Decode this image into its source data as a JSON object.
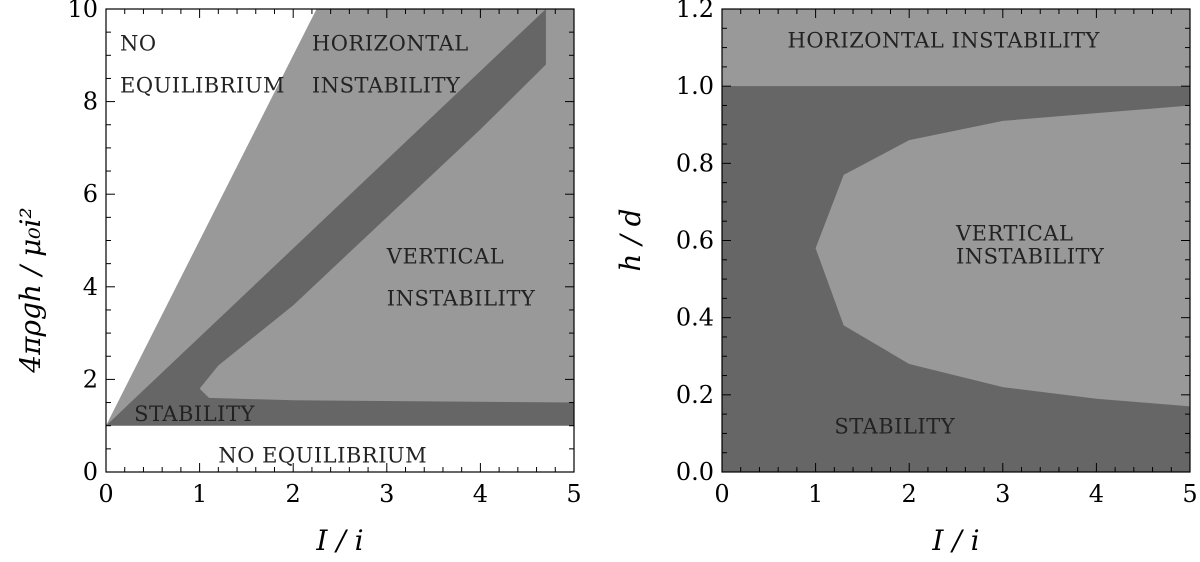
{
  "chart_data": [
    {
      "type": "area",
      "title": "",
      "xlabel": "I / i",
      "ylabel": "4πρgh / μ₀i²",
      "xlim": [
        0,
        5
      ],
      "ylim": [
        0,
        10
      ],
      "xticks": [
        "0",
        "1",
        "2",
        "3",
        "4",
        "5"
      ],
      "yticks": [
        "0",
        "2",
        "4",
        "6",
        "8",
        "10"
      ],
      "grid": false,
      "colors": {
        "no_equilibrium": "#ffffff",
        "stability": "#666666",
        "instability": "#999999"
      },
      "regions": [
        {
          "name": "no_equilibrium_upper",
          "boundary_y_eq_1_plus_4x": true
        },
        {
          "name": "no_equilibrium_lower",
          "y_max": 1
        }
      ],
      "boundaries": {
        "equilibrium_upper": [
          [
            0,
            1
          ],
          [
            2.25,
            10
          ]
        ],
        "horizontal_lower": [
          [
            0,
            1
          ],
          [
            4.7,
            10
          ]
        ],
        "horizontal_upper": [
          [
            0,
            1
          ],
          [
            5,
            10.2
          ]
        ],
        "vertical_instability": [
          [
            1.0,
            1.8
          ],
          [
            1.2,
            2.3
          ],
          [
            2.0,
            3.6
          ],
          [
            3.0,
            5.5
          ],
          [
            4.0,
            7.4
          ],
          [
            4.7,
            8.8
          ],
          [
            5,
            8.8
          ],
          [
            5,
            1.5
          ],
          [
            2.0,
            1.55
          ],
          [
            1.1,
            1.6
          ],
          [
            1.0,
            1.8
          ]
        ],
        "stability_bottom": [
          [
            0,
            1
          ],
          [
            5,
            1
          ]
        ]
      },
      "annotations": [
        {
          "text": "NO",
          "x": 0.15,
          "y": 9.1
        },
        {
          "text": "EQUILIBRIUM",
          "x": 0.15,
          "y": 8.2
        },
        {
          "text": "HORIZONTAL",
          "x": 2.2,
          "y": 9.1
        },
        {
          "text": "INSTABILITY",
          "x": 2.2,
          "y": 8.2
        },
        {
          "text": "VERTICAL",
          "x": 3.0,
          "y": 4.5
        },
        {
          "text": "INSTABILITY",
          "x": 3.0,
          "y": 3.6
        },
        {
          "text": "STABILITY",
          "x": 0.3,
          "y": 1.1
        },
        {
          "text": "NO EQUILIBRIUM",
          "x": 1.2,
          "y": 0.2
        }
      ]
    },
    {
      "type": "area",
      "title": "",
      "xlabel": "I / i",
      "ylabel": "h / d",
      "xlim": [
        0,
        5
      ],
      "ylim": [
        0,
        1.2
      ],
      "xticks": [
        "0",
        "1",
        "2",
        "3",
        "4",
        "5"
      ],
      "yticks": [
        "0.0",
        "0.2",
        "0.4",
        "0.6",
        "0.8",
        "1.0",
        "1.2"
      ],
      "grid": false,
      "colors": {
        "stability": "#666666",
        "instability": "#999999"
      },
      "boundaries": {
        "horizontal_instability_y_min": 1.0,
        "vertical_instability": [
          [
            1.0,
            0.58
          ],
          [
            1.3,
            0.77
          ],
          [
            2.0,
            0.86
          ],
          [
            3.0,
            0.91
          ],
          [
            4.0,
            0.93
          ],
          [
            5.0,
            0.95
          ],
          [
            5.0,
            0.17
          ],
          [
            4.0,
            0.19
          ],
          [
            3.0,
            0.22
          ],
          [
            2.0,
            0.28
          ],
          [
            1.3,
            0.38
          ],
          [
            1.0,
            0.58
          ]
        ]
      },
      "annotations": [
        {
          "text": "HORIZONTAL INSTABILITY",
          "x": 0.7,
          "y": 1.1
        },
        {
          "text": "VERTICAL",
          "x": 2.5,
          "y": 0.6
        },
        {
          "text": "INSTABILITY",
          "x": 2.5,
          "y": 0.54
        },
        {
          "text": "STABILITY",
          "x": 1.2,
          "y": 0.1
        }
      ]
    }
  ]
}
